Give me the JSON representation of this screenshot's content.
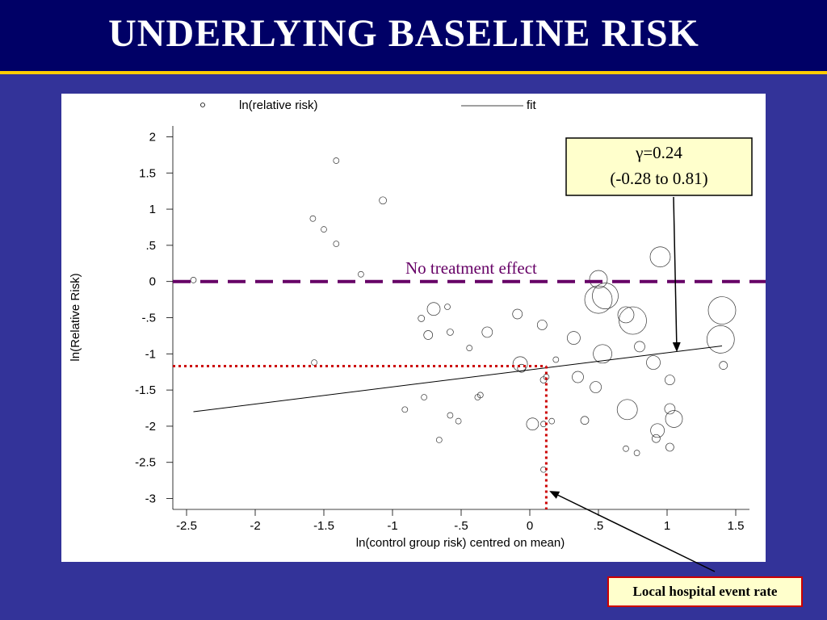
{
  "slide": {
    "title": "UNDERLYING BASELINE RISK"
  },
  "colors": {
    "background": "#333399",
    "title_bar": "#000066",
    "title_rule": "#ffcc00",
    "no_effect_line": "#660066",
    "local_rate": "#cc0000",
    "callout_fill": "#ffffcc"
  },
  "annotations": {
    "gamma_line1": "γ=0.24",
    "gamma_line2": "(-0.28 to 0.81)",
    "no_effect": "No treatment effect",
    "local_rate": "Local hospital event rate"
  },
  "chart_data": {
    "type": "scatter",
    "title": "",
    "xlabel": "ln(control group risk) centred on mean)",
    "ylabel": "ln(Relative Risk)",
    "xlim": [
      -2.6,
      1.6
    ],
    "ylim": [
      -3.15,
      2.15
    ],
    "xticks": [
      -2.5,
      -2,
      -1.5,
      -1,
      -0.5,
      0,
      0.5,
      1,
      1.5
    ],
    "xtick_labels": [
      "-2.5",
      "-2",
      "-1.5",
      "-1",
      "-.5",
      "0",
      ".5",
      "1",
      "1.5"
    ],
    "yticks": [
      2,
      1.5,
      1,
      0.5,
      0,
      -0.5,
      -1,
      -1.5,
      -2,
      -2.5,
      -3
    ],
    "ytick_labels": [
      "2",
      "1.5",
      "1",
      ".5",
      "0",
      "-.5",
      "-1",
      "-1.5",
      "-2",
      "-2.5",
      "-3"
    ],
    "legend": {
      "position": "top",
      "entries": [
        "ln(relative risk)",
        "fit"
      ]
    },
    "no_effect_y": 0,
    "local_rate": {
      "x": 0.12,
      "y": -1.17
    },
    "fit": {
      "x": [
        -2.45,
        1.4
      ],
      "y": [
        -1.8,
        -0.89
      ]
    },
    "points": [
      {
        "x": -2.45,
        "y": 0.02,
        "r": 3.5
      },
      {
        "x": -1.58,
        "y": 0.87,
        "r": 3.5
      },
      {
        "x": -1.57,
        "y": -1.12,
        "r": 3.5
      },
      {
        "x": -1.5,
        "y": 0.72,
        "r": 3.5
      },
      {
        "x": -1.41,
        "y": 1.67,
        "r": 3.5
      },
      {
        "x": -1.41,
        "y": 0.52,
        "r": 3.5
      },
      {
        "x": -1.23,
        "y": 0.1,
        "r": 3.5
      },
      {
        "x": -1.07,
        "y": 1.12,
        "r": 4.5
      },
      {
        "x": -0.91,
        "y": -1.77,
        "r": 3.5
      },
      {
        "x": -0.79,
        "y": -0.51,
        "r": 4
      },
      {
        "x": -0.77,
        "y": -1.6,
        "r": 3.5
      },
      {
        "x": -0.74,
        "y": -0.74,
        "r": 5.5
      },
      {
        "x": -0.7,
        "y": -0.38,
        "r": 8
      },
      {
        "x": -0.66,
        "y": -2.19,
        "r": 3.5
      },
      {
        "x": -0.6,
        "y": -0.35,
        "r": 3.5
      },
      {
        "x": -0.58,
        "y": -1.85,
        "r": 3.5
      },
      {
        "x": -0.58,
        "y": -0.7,
        "r": 4
      },
      {
        "x": -0.52,
        "y": -1.93,
        "r": 3.5
      },
      {
        "x": -0.44,
        "y": -0.92,
        "r": 3.5
      },
      {
        "x": -0.38,
        "y": -1.6,
        "r": 3.5
      },
      {
        "x": -0.36,
        "y": -1.57,
        "r": 3.5
      },
      {
        "x": -0.31,
        "y": -0.7,
        "r": 6.5
      },
      {
        "x": -0.09,
        "y": -0.45,
        "r": 6
      },
      {
        "x": -0.07,
        "y": -1.14,
        "r": 9
      },
      {
        "x": -0.06,
        "y": -1.2,
        "r": 5
      },
      {
        "x": 0.02,
        "y": -1.97,
        "r": 7.5
      },
      {
        "x": 0.09,
        "y": -0.6,
        "r": 6
      },
      {
        "x": 0.1,
        "y": -1.36,
        "r": 4
      },
      {
        "x": 0.1,
        "y": -1.97,
        "r": 3.5
      },
      {
        "x": 0.1,
        "y": -2.6,
        "r": 3.5
      },
      {
        "x": 0.12,
        "y": -1.32,
        "r": 3.5
      },
      {
        "x": 0.16,
        "y": -1.93,
        "r": 3.5
      },
      {
        "x": 0.19,
        "y": -1.08,
        "r": 3.5
      },
      {
        "x": 0.32,
        "y": -0.78,
        "r": 8
      },
      {
        "x": 0.35,
        "y": -1.32,
        "r": 7
      },
      {
        "x": 0.4,
        "y": -1.92,
        "r": 5
      },
      {
        "x": 0.48,
        "y": -1.46,
        "r": 7
      },
      {
        "x": 0.5,
        "y": -0.25,
        "r": 17
      },
      {
        "x": 0.5,
        "y": 0.03,
        "r": 11
      },
      {
        "x": 0.53,
        "y": -1.0,
        "r": 11.5
      },
      {
        "x": 0.55,
        "y": -0.2,
        "r": 16
      },
      {
        "x": 0.7,
        "y": -2.31,
        "r": 3.5
      },
      {
        "x": 0.7,
        "y": -0.46,
        "r": 10
      },
      {
        "x": 0.71,
        "y": -1.77,
        "r": 12.5
      },
      {
        "x": 0.75,
        "y": -0.54,
        "r": 17
      },
      {
        "x": 0.78,
        "y": -2.37,
        "r": 3.5
      },
      {
        "x": 0.8,
        "y": -0.9,
        "r": 6.5
      },
      {
        "x": 0.9,
        "y": -1.12,
        "r": 8.5
      },
      {
        "x": 0.92,
        "y": -2.17,
        "r": 5
      },
      {
        "x": 0.93,
        "y": -2.06,
        "r": 8.5
      },
      {
        "x": 0.95,
        "y": 0.34,
        "r": 12.5
      },
      {
        "x": 1.02,
        "y": -1.76,
        "r": 6.5
      },
      {
        "x": 1.02,
        "y": -2.29,
        "r": 5
      },
      {
        "x": 1.02,
        "y": -1.36,
        "r": 6
      },
      {
        "x": 1.05,
        "y": -1.9,
        "r": 10.5
      },
      {
        "x": 1.39,
        "y": -0.8,
        "r": 17
      },
      {
        "x": 1.4,
        "y": -0.4,
        "r": 17
      },
      {
        "x": 1.41,
        "y": -1.16,
        "r": 5
      }
    ]
  }
}
